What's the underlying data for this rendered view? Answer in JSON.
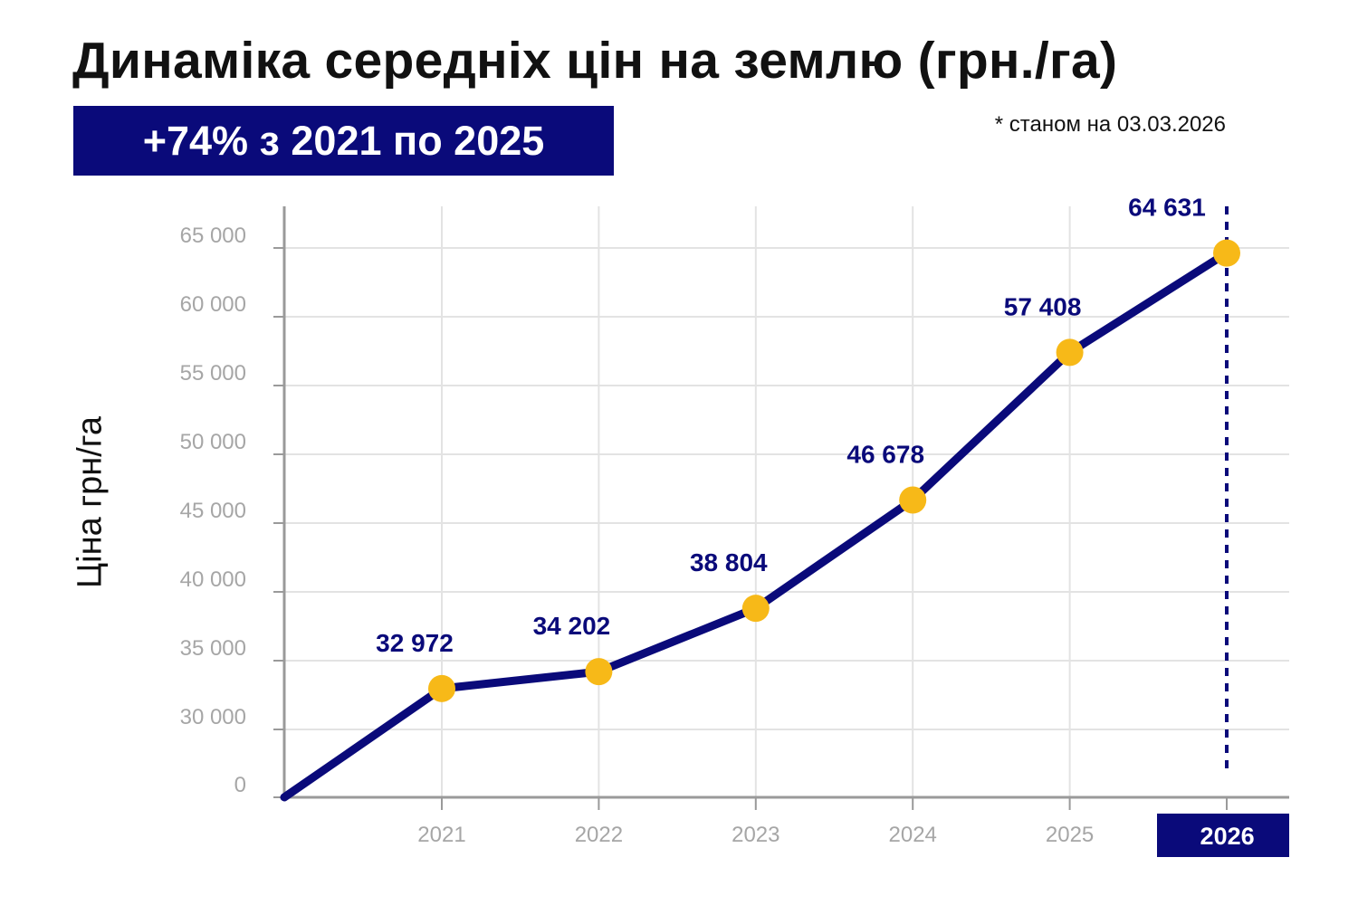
{
  "title": "Динаміка середніх цін на землю (грн./га)",
  "badge": "+74% з 2021 по 2025",
  "note": "* станом на 03.03.2026",
  "colors": {
    "line": "#0a0a7a",
    "point": "#f7b918",
    "label": "#0a0a7a",
    "tick": "#a6a6a6",
    "grid": "#e3e3e3",
    "axis": "#9a9a9a",
    "highlight_bg": "#0a0a7a"
  },
  "chart_data": {
    "type": "line",
    "title": "Динаміка середніх цін на землю (грн./га)",
    "xlabel": "",
    "ylabel": "Ціна грн/га",
    "x": [
      "2021",
      "2022",
      "2023",
      "2024",
      "2025",
      "2026"
    ],
    "values": [
      32972,
      34202,
      38804,
      46678,
      57408,
      64631
    ],
    "value_labels": [
      "32 972",
      "34 202",
      "38 804",
      "46 678",
      "57 408",
      "64 631"
    ],
    "y_ticks": [
      0,
      30000,
      35000,
      40000,
      45000,
      50000,
      55000,
      60000,
      65000
    ],
    "y_tick_labels": [
      "0",
      "30 000",
      "35 000",
      "40 000",
      "45 000",
      "50 000",
      "55 000",
      "60 000",
      "65 000"
    ],
    "ylim": [
      0,
      65000
    ],
    "y_axis_break": "between 0 and 30 000",
    "line_starts_at_origin": true,
    "highlighted_x": "2026",
    "highlight_marker": "dotted vertical line",
    "grid": true,
    "legend": "none"
  }
}
